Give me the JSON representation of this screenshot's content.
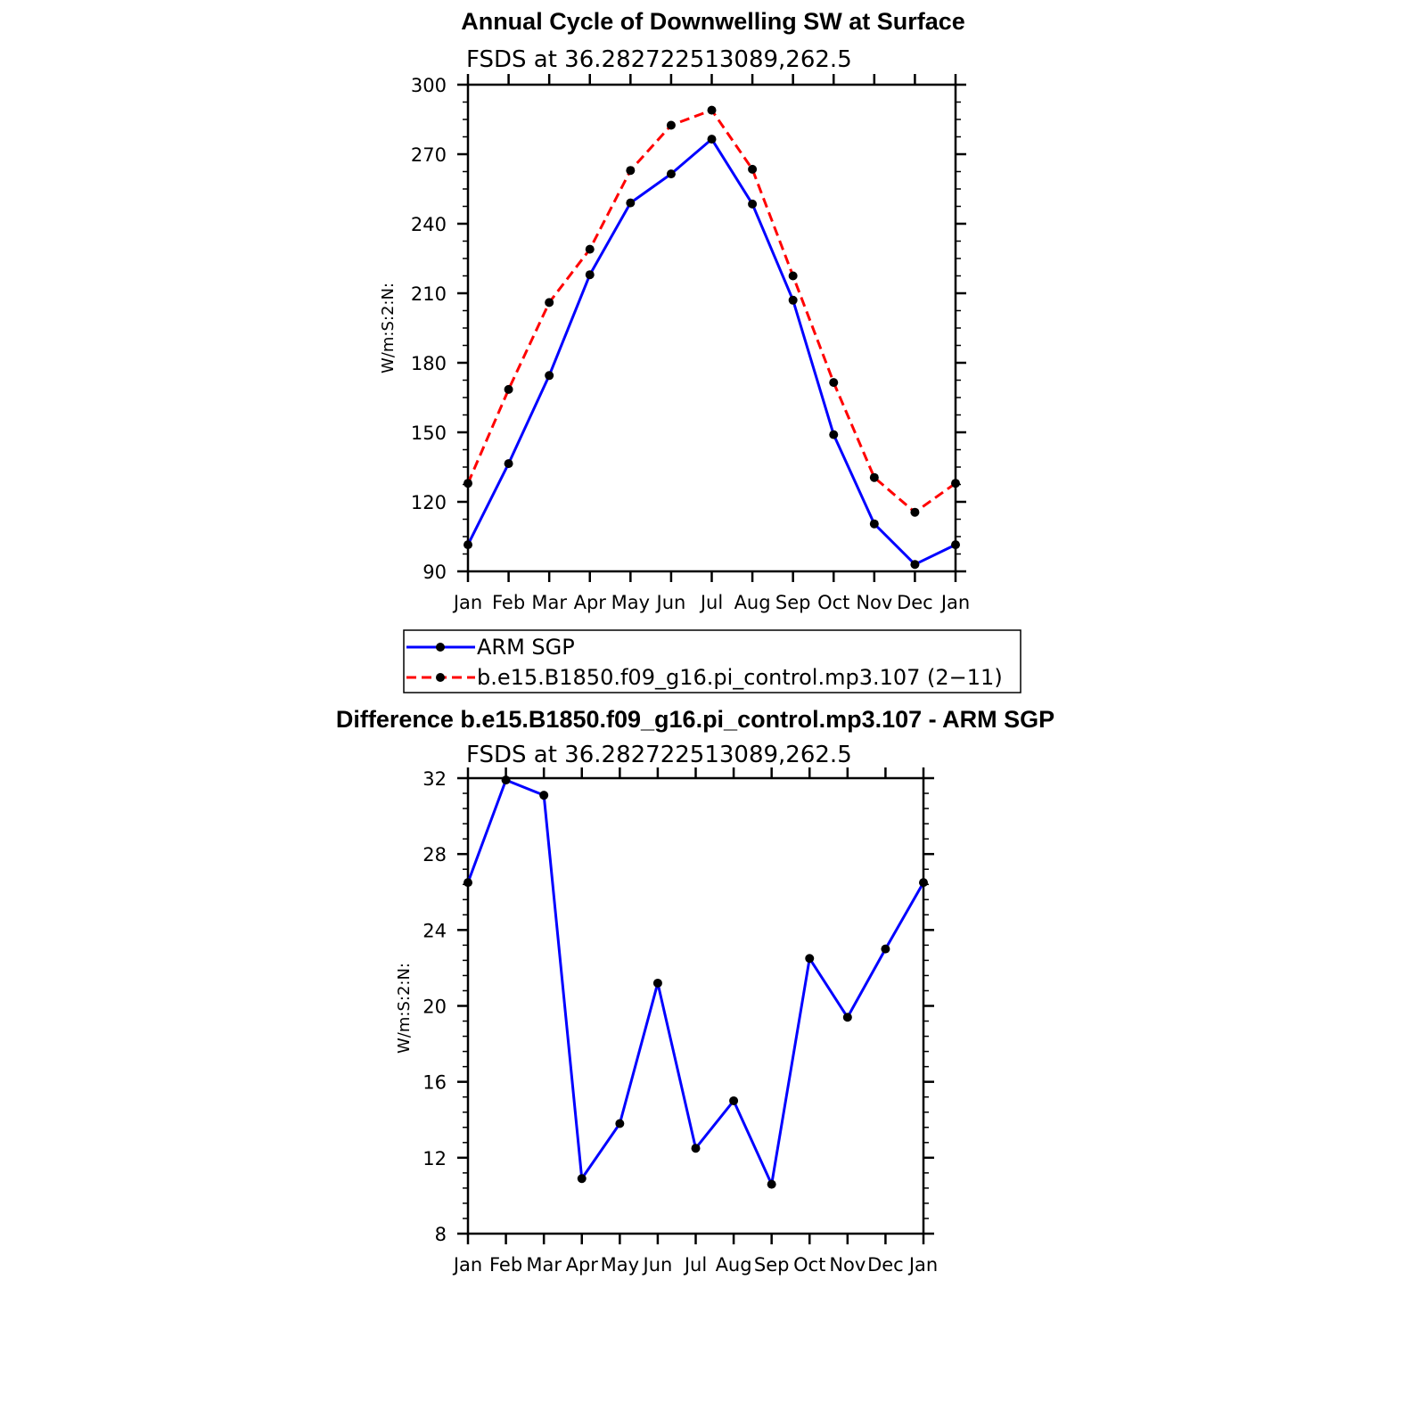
{
  "chart_data": [
    {
      "type": "line",
      "title": "Annual Cycle of Downwelling SW at Surface",
      "subtitle": "FSDS at 36.282722513089,262.5",
      "xlabel": "",
      "ylabel": "W/m:S:2:N:",
      "categories": [
        "Jan",
        "Feb",
        "Mar",
        "Apr",
        "May",
        "Jun",
        "Jul",
        "Aug",
        "Sep",
        "Oct",
        "Nov",
        "Dec",
        "Jan"
      ],
      "ylim": [
        90,
        300
      ],
      "yticks": [
        90,
        120,
        150,
        180,
        210,
        240,
        270,
        300
      ],
      "series": [
        {
          "name": "ARM SGP",
          "color": "#0000ff",
          "dash": "solid",
          "values": [
            101.5,
            136.5,
            174.5,
            218,
            249,
            261.5,
            276.5,
            248.5,
            207,
            149,
            110.5,
            93,
            101.5
          ]
        },
        {
          "name": "b.e15.B1850.f09_g16.pi_control.mp3.107 (2−11)",
          "color": "#ff0000",
          "dash": "dashed",
          "values": [
            128,
            168.5,
            206,
            229,
            263,
            282.5,
            289,
            263.5,
            217.5,
            171.5,
            130.5,
            115.5,
            128
          ]
        }
      ],
      "grid": false,
      "legend_position": "bottom"
    },
    {
      "type": "line",
      "title": "Difference b.e15.B1850.f09_g16.pi_control.mp3.107 - ARM SGP",
      "subtitle": "FSDS at 36.282722513089,262.5",
      "xlabel": "",
      "ylabel": "W/m:S:2:N:",
      "categories": [
        "Jan",
        "Feb",
        "Mar",
        "Apr",
        "May",
        "Jun",
        "Jul",
        "Aug",
        "Sep",
        "Oct",
        "Nov",
        "Dec",
        "Jan"
      ],
      "ylim": [
        8,
        32
      ],
      "yticks": [
        8,
        12,
        16,
        20,
        24,
        28,
        32
      ],
      "series": [
        {
          "color": "#0000ff",
          "dash": "solid",
          "values": [
            26.5,
            31.9,
            31.1,
            10.9,
            13.8,
            21.2,
            12.5,
            15.0,
            10.6,
            22.5,
            19.4,
            23.0,
            26.5
          ]
        }
      ],
      "grid": false
    }
  ]
}
